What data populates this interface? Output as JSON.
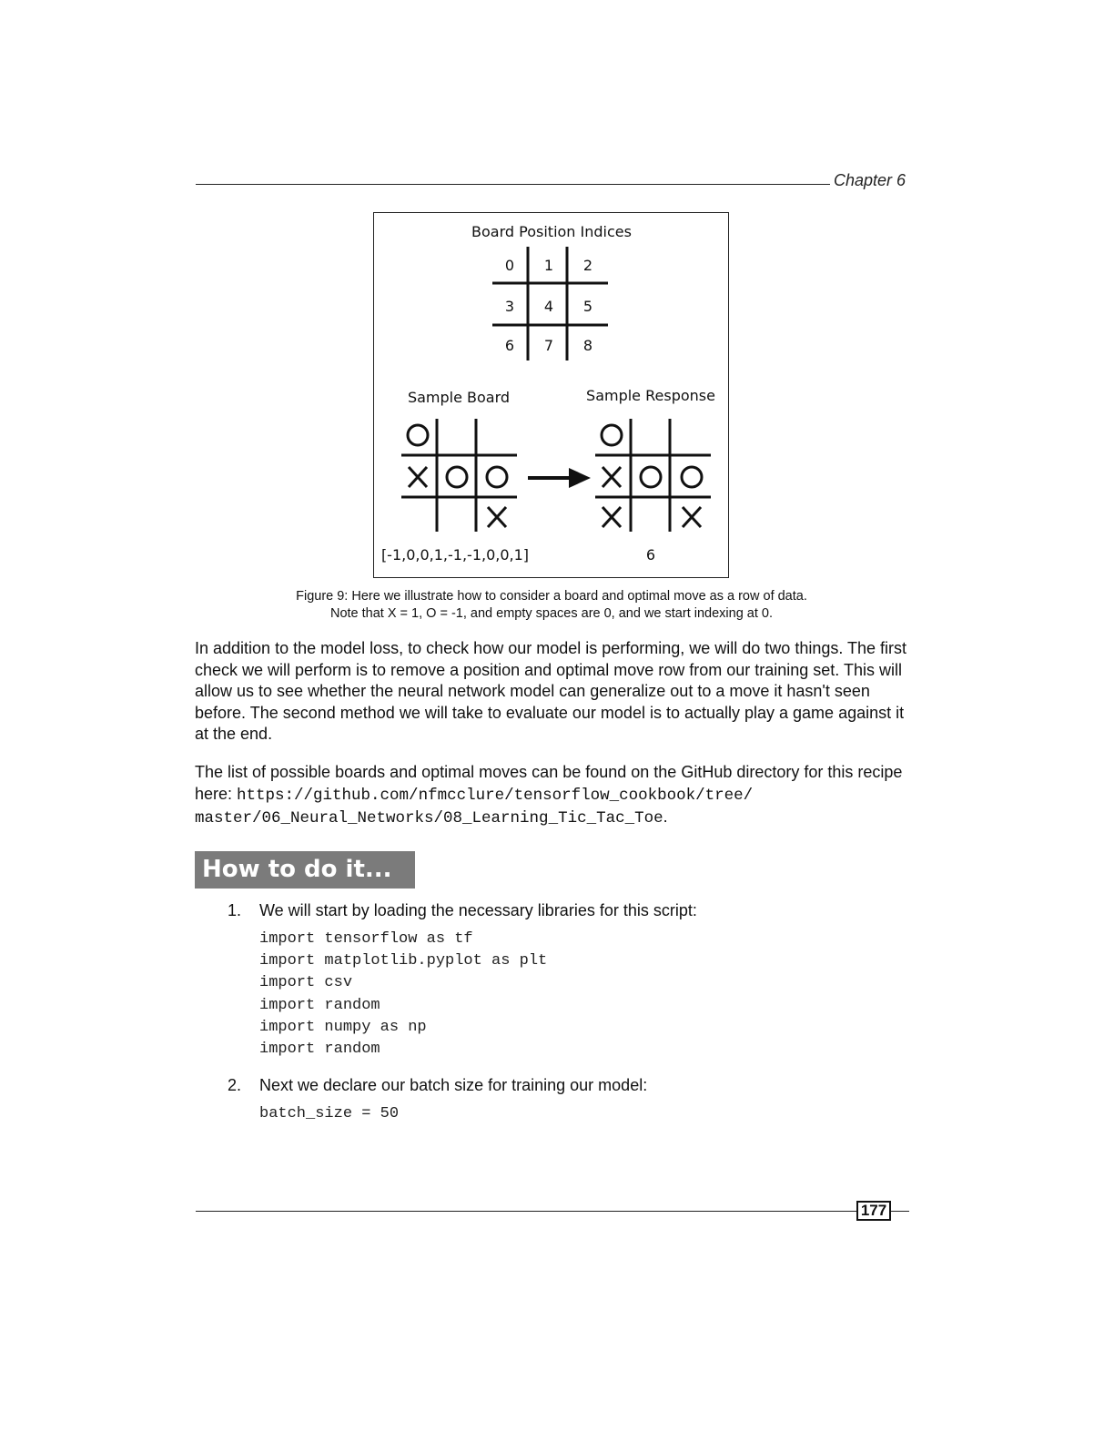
{
  "header": {
    "chapter": "Chapter 6"
  },
  "figure": {
    "title": "Board Position Indices",
    "indices": [
      "0",
      "1",
      "2",
      "3",
      "4",
      "5",
      "6",
      "7",
      "8"
    ],
    "sample_board_label": "Sample Board",
    "sample_response_label": "Sample Response",
    "sample_board_cells": [
      "O",
      "",
      "",
      "X",
      "O",
      "O",
      "",
      "",
      "X"
    ],
    "sample_response_cells": [
      "O",
      "",
      "",
      "X",
      "O",
      "O",
      "X",
      "",
      "X"
    ],
    "board_vector": "[-1,0,0,1,-1,-1,0,0,1]",
    "response_value": "6",
    "caption_line1": "Figure 9: Here we illustrate how to consider a board and optimal move as a row of data.",
    "caption_line2": "Note that X = 1, O = -1, and empty spaces are 0, and we start indexing at 0."
  },
  "body": {
    "para1": "In addition to the model loss, to check how our model is performing, we will do two things. The first check we will perform is to remove a position and optimal move row from our training set. This will allow us to see whether the neural network model can generalize out to a move it hasn't seen before. The second method we will take to evaluate our model is to actually play a game against it at the end.",
    "para2_text": "The list of possible boards and optimal moves can be found on the GitHub directory for this recipe here: ",
    "para2_url_line1": "https://github.com/nfmcclure/tensorflow_cookbook/tree/",
    "para2_url_line2": "master/06_Neural_Networks/08_Learning_Tic_Tac_Toe",
    "para2_end": "."
  },
  "section": {
    "heading": "How to do it..."
  },
  "steps": [
    {
      "number": "1.",
      "text": "We will start by loading the necessary libraries for this script:",
      "code": "import tensorflow as tf\nimport matplotlib.pyplot as plt\nimport csv\nimport random\nimport numpy as np\nimport random"
    },
    {
      "number": "2.",
      "text": "Next we declare our batch size for training our model:",
      "code": "batch_size = 50"
    }
  ],
  "footer": {
    "page_number": "177"
  }
}
